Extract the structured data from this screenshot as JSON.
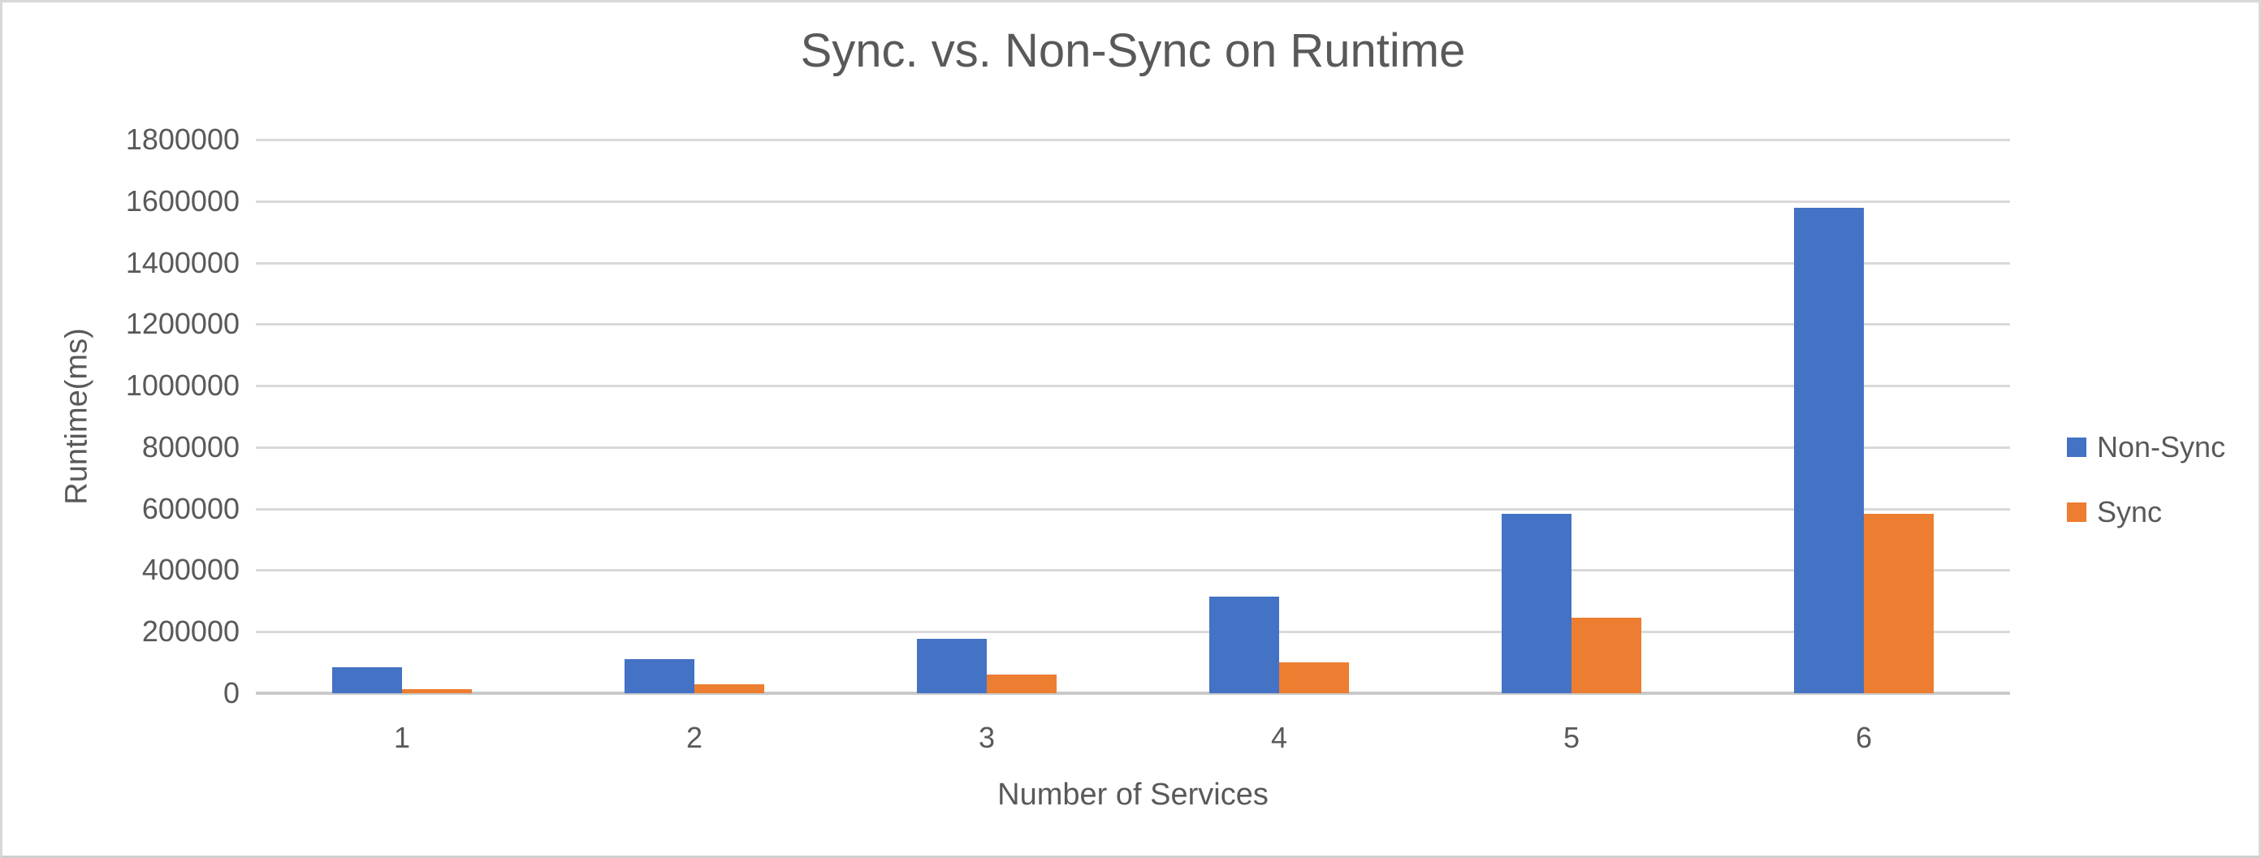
{
  "chart_data": {
    "type": "bar",
    "title": "Sync. vs. Non-Sync on Runtime",
    "xlabel": "Number of Services",
    "ylabel": "Runtime(ms)",
    "categories": [
      "1",
      "2",
      "3",
      "4",
      "5",
      "6"
    ],
    "series": [
      {
        "name": "Non-Sync",
        "color": "#4472C4",
        "values": [
          85000,
          111000,
          178000,
          314000,
          584000,
          1577000
        ]
      },
      {
        "name": "Sync",
        "color": "#ED7D31",
        "values": [
          13000,
          28000,
          62000,
          99000,
          246000,
          583000
        ]
      }
    ],
    "ylim": [
      0,
      1800000
    ],
    "ytick_step": 200000,
    "ytick_labels": [
      "0",
      "200000",
      "400000",
      "600000",
      "800000",
      "1000000",
      "1200000",
      "1400000",
      "1600000",
      "1800000"
    ],
    "grid": true,
    "legend_position": "right"
  },
  "colors": {
    "background": "#FFFFFF",
    "border": "#D8D8D8",
    "gridline": "#D9D9D9",
    "axis_line": "#C9C9C9",
    "text": "#595959"
  }
}
